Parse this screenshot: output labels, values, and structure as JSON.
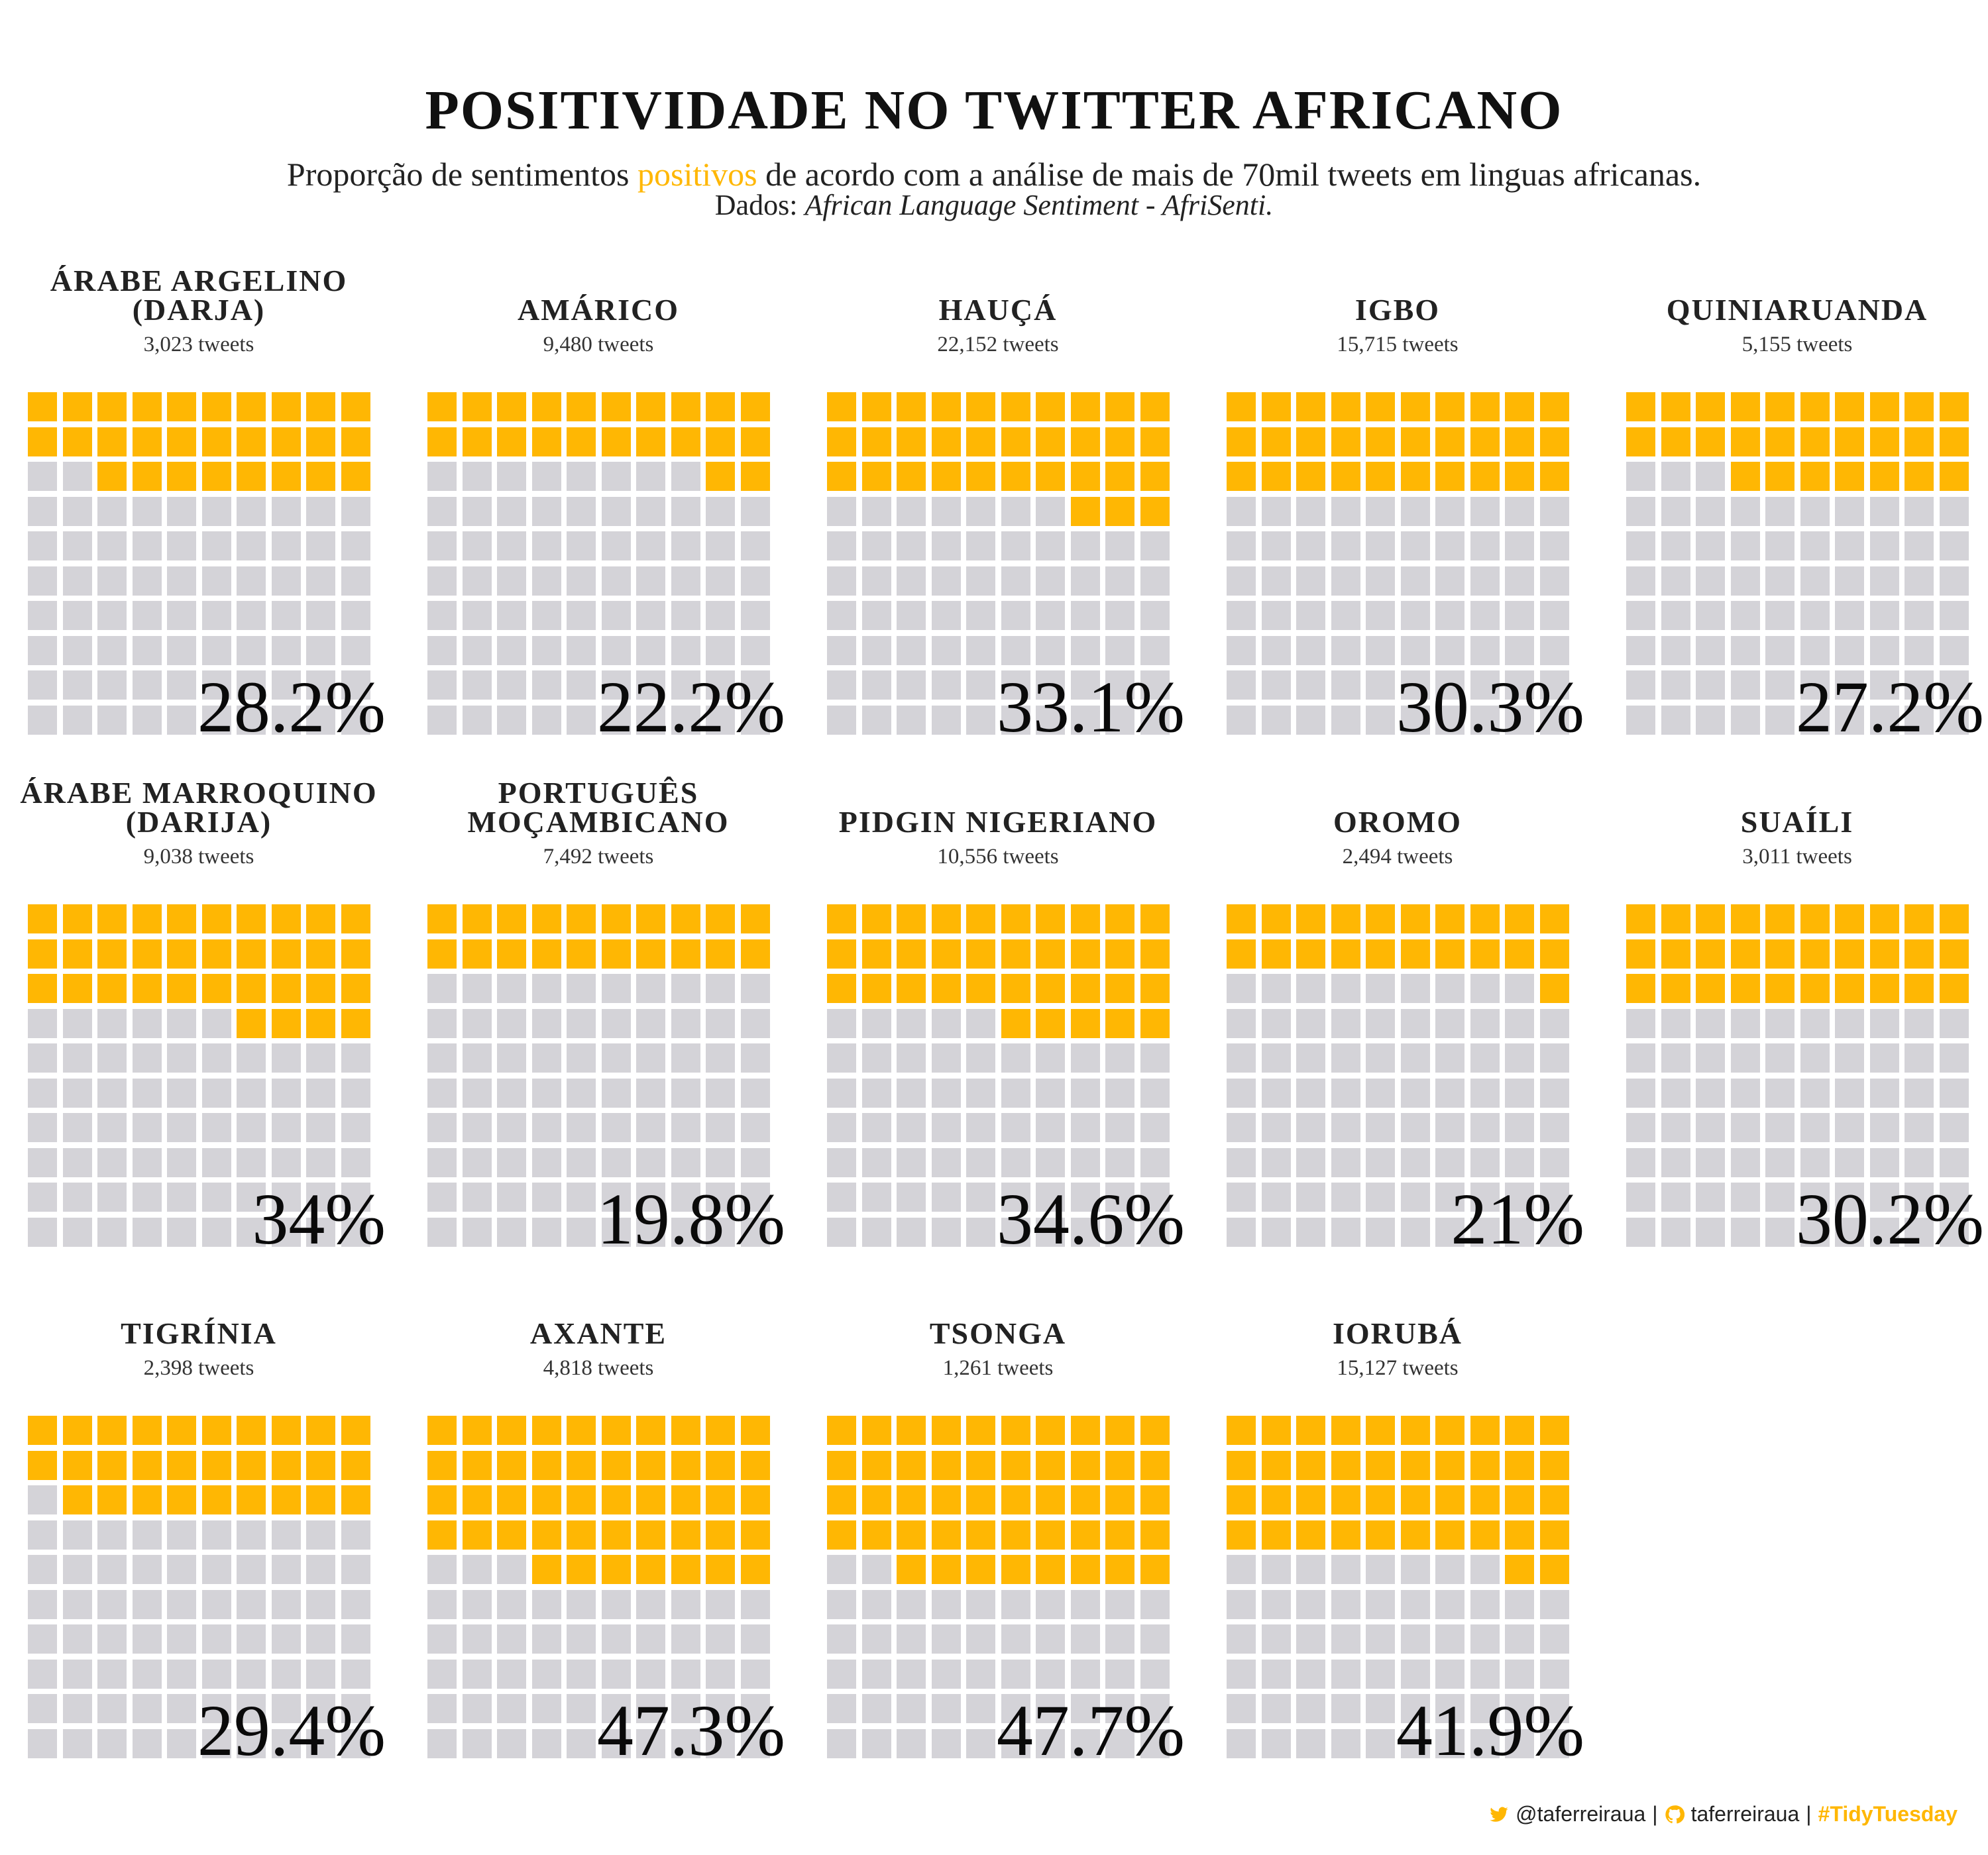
{
  "header": {
    "title": "POSITIVIDADE NO TWITTER AFRICANO",
    "subtitle_before": "Proporção de sentimentos ",
    "subtitle_highlight": "positivos",
    "subtitle_after": " de acordo com a análise de mais de 70mil tweets em linguas africanas.",
    "source_label": "Dados: ",
    "source_name": "African Language Sentiment - AfriSenti."
  },
  "footer": {
    "twitter": "@taferreiraua",
    "sep1": "|",
    "github": "taferreiraua",
    "sep2": "|",
    "hashtag": "#TidyTuesday"
  },
  "colors": {
    "positive": "#ffb703",
    "other": "#d4d3d8"
  },
  "chart_data": {
    "type": "waffle",
    "grid": "10x10",
    "panels": [
      {
        "lines": [
          "ÁRABE ARGELINO",
          "(DARJA)"
        ],
        "count_label": "3,023 tweets",
        "tweets": 3023,
        "percent_label": "28.2%",
        "filled": 28
      },
      {
        "lines": [
          "AMÁRICO"
        ],
        "count_label": "9,480 tweets",
        "tweets": 9480,
        "percent_label": "22.2%",
        "filled": 22
      },
      {
        "lines": [
          "HAUÇÁ"
        ],
        "count_label": "22,152 tweets",
        "tweets": 22152,
        "percent_label": "33.1%",
        "filled": 33
      },
      {
        "lines": [
          "IGBO"
        ],
        "count_label": "15,715 tweets",
        "tweets": 15715,
        "percent_label": "30.3%",
        "filled": 30
      },
      {
        "lines": [
          "QUINIARUANDA"
        ],
        "count_label": "5,155 tweets",
        "tweets": 5155,
        "percent_label": "27.2%",
        "filled": 27
      },
      {
        "lines": [
          "ÁRABE MARROQUINO",
          "(DARIJA)"
        ],
        "count_label": "9,038 tweets",
        "tweets": 9038,
        "percent_label": "34%",
        "filled": 34
      },
      {
        "lines": [
          "PORTUGUÊS",
          "MOÇAMBICANO"
        ],
        "count_label": "7,492 tweets",
        "tweets": 7492,
        "percent_label": "19.8%",
        "filled": 20
      },
      {
        "lines": [
          "PIDGIN NIGERIANO"
        ],
        "count_label": "10,556 tweets",
        "tweets": 10556,
        "percent_label": "34.6%",
        "filled": 35
      },
      {
        "lines": [
          "OROMO"
        ],
        "count_label": "2,494 tweets",
        "tweets": 2494,
        "percent_label": "21%",
        "filled": 21
      },
      {
        "lines": [
          "SUAÍLI"
        ],
        "count_label": "3,011 tweets",
        "tweets": 3011,
        "percent_label": "30.2%",
        "filled": 30
      },
      {
        "lines": [
          "TIGRÍNIA"
        ],
        "count_label": "2,398 tweets",
        "tweets": 2398,
        "percent_label": "29.4%",
        "filled": 29
      },
      {
        "lines": [
          "AXANTE"
        ],
        "count_label": "4,818 tweets",
        "tweets": 4818,
        "percent_label": "47.3%",
        "filled": 47
      },
      {
        "lines": [
          "TSONGA"
        ],
        "count_label": "1,261 tweets",
        "tweets": 1261,
        "percent_label": "47.7%",
        "filled": 48
      },
      {
        "lines": [
          "IORUBÁ"
        ],
        "count_label": "15,127 tweets",
        "tweets": 15127,
        "percent_label": "41.9%",
        "filled": 42
      }
    ]
  }
}
